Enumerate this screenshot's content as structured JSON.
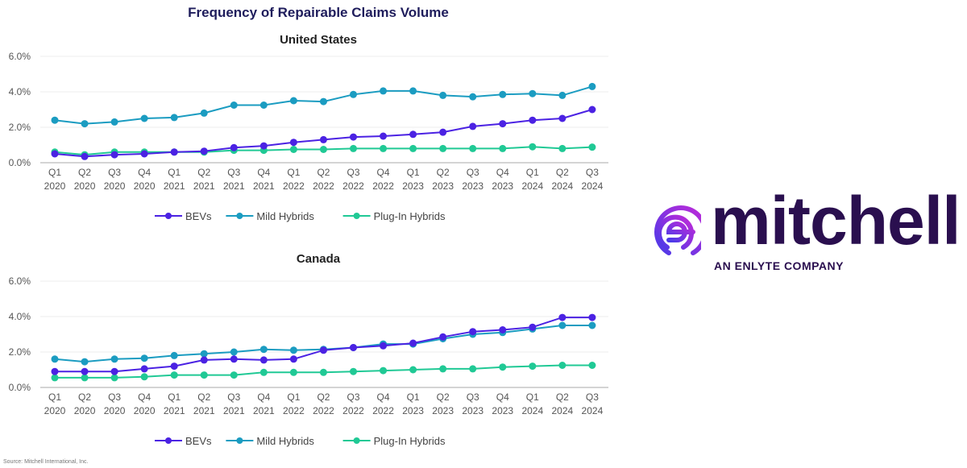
{
  "title": "Frequency of Repairable Claims Volume",
  "source": "Source: Mitchell International, Inc.",
  "logo": {
    "word": "mitchell",
    "tagline": "AN ENLYTE COMPANY"
  },
  "colors": {
    "BEVs": "#4b22e3",
    "Mild Hybrids": "#1b9cc1",
    "Plug-In Hybrids": "#20c995",
    "title": "#1f1d5c"
  },
  "chart_data": [
    {
      "type": "line",
      "title": "United States",
      "ylim": [
        0,
        6
      ],
      "yticks": [
        "0.0%",
        "2.0%",
        "4.0%",
        "6.0%"
      ],
      "grid": true,
      "legend": "bottom",
      "categories": [
        [
          "Q1",
          "2020"
        ],
        [
          "Q2",
          "2020"
        ],
        [
          "Q3",
          "2020"
        ],
        [
          "Q4",
          "2020"
        ],
        [
          "Q1",
          "2021"
        ],
        [
          "Q2",
          "2021"
        ],
        [
          "Q3",
          "2021"
        ],
        [
          "Q4",
          "2021"
        ],
        [
          "Q1",
          "2022"
        ],
        [
          "Q2",
          "2022"
        ],
        [
          "Q3",
          "2022"
        ],
        [
          "Q4",
          "2022"
        ],
        [
          "Q1",
          "2023"
        ],
        [
          "Q2",
          "2023"
        ],
        [
          "Q3",
          "2023"
        ],
        [
          "Q4",
          "2023"
        ],
        [
          "Q1",
          "2024"
        ],
        [
          "Q2",
          "2024"
        ],
        [
          "Q3",
          "2024"
        ]
      ],
      "series": [
        {
          "name": "BEVs",
          "values": [
            0.5,
            0.35,
            0.45,
            0.5,
            0.6,
            0.65,
            0.85,
            0.95,
            1.15,
            1.3,
            1.45,
            1.5,
            1.6,
            1.72,
            2.05,
            2.2,
            2.4,
            2.5,
            3.0
          ]
        },
        {
          "name": "Mild Hybrids",
          "values": [
            2.4,
            2.2,
            2.3,
            2.5,
            2.55,
            2.8,
            3.25,
            3.25,
            3.5,
            3.45,
            3.85,
            4.05,
            4.05,
            3.8,
            3.72,
            3.85,
            3.9,
            3.8,
            4.3
          ]
        },
        {
          "name": "Plug-In Hybrids",
          "values": [
            0.6,
            0.45,
            0.6,
            0.6,
            0.6,
            0.6,
            0.7,
            0.7,
            0.75,
            0.75,
            0.8,
            0.8,
            0.8,
            0.8,
            0.8,
            0.8,
            0.9,
            0.8,
            0.88
          ]
        }
      ]
    },
    {
      "type": "line",
      "title": "Canada",
      "ylim": [
        0,
        6
      ],
      "yticks": [
        "0.0%",
        "2.0%",
        "4.0%",
        "6.0%"
      ],
      "grid": true,
      "legend": "bottom",
      "categories": [
        [
          "Q1",
          "2020"
        ],
        [
          "Q2",
          "2020"
        ],
        [
          "Q3",
          "2020"
        ],
        [
          "Q4",
          "2020"
        ],
        [
          "Q1",
          "2021"
        ],
        [
          "Q2",
          "2021"
        ],
        [
          "Q3",
          "2021"
        ],
        [
          "Q4",
          "2021"
        ],
        [
          "Q1",
          "2022"
        ],
        [
          "Q2",
          "2022"
        ],
        [
          "Q3",
          "2022"
        ],
        [
          "Q4",
          "2022"
        ],
        [
          "Q1",
          "2023"
        ],
        [
          "Q2",
          "2023"
        ],
        [
          "Q3",
          "2023"
        ],
        [
          "Q4",
          "2023"
        ],
        [
          "Q1",
          "2024"
        ],
        [
          "Q2",
          "2024"
        ],
        [
          "Q3",
          "2024"
        ]
      ],
      "series": [
        {
          "name": "BEVs",
          "values": [
            0.9,
            0.9,
            0.9,
            1.05,
            1.2,
            1.55,
            1.6,
            1.55,
            1.6,
            2.1,
            2.25,
            2.35,
            2.5,
            2.85,
            3.15,
            3.25,
            3.4,
            3.95,
            3.95
          ]
        },
        {
          "name": "Mild Hybrids",
          "values": [
            1.6,
            1.45,
            1.6,
            1.65,
            1.8,
            1.9,
            2.0,
            2.15,
            2.1,
            2.15,
            2.25,
            2.45,
            2.45,
            2.75,
            3.0,
            3.1,
            3.3,
            3.5,
            3.5
          ]
        },
        {
          "name": "Plug-In Hybrids",
          "values": [
            0.55,
            0.55,
            0.55,
            0.6,
            0.7,
            0.7,
            0.7,
            0.85,
            0.85,
            0.85,
            0.9,
            0.95,
            1.0,
            1.05,
            1.05,
            1.15,
            1.2,
            1.25,
            1.25
          ]
        }
      ]
    }
  ]
}
